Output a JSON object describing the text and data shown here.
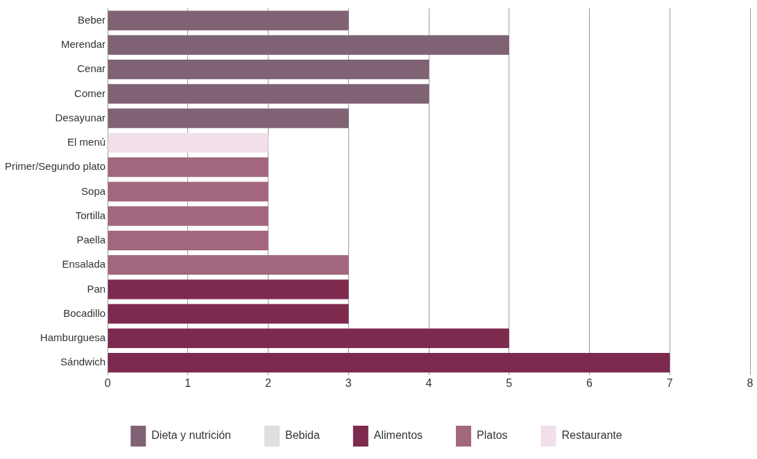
{
  "chart_data": {
    "type": "bar",
    "orientation": "horizontal",
    "stacked": true,
    "categories": [
      "Beber",
      "Merendar",
      "Cenar",
      "Comer",
      "Desayunar",
      "El menú",
      "Primer/Segundo plato",
      "Sopa",
      "Tortilla",
      "Paella",
      "Ensalada",
      "Pan",
      "Bocadillo",
      "Hamburguesa",
      "Sándwich"
    ],
    "series": [
      {
        "name": "Dieta y nutrición",
        "color": "#7f6374",
        "values": [
          3,
          5,
          4,
          4,
          3,
          null,
          null,
          null,
          null,
          null,
          null,
          null,
          null,
          null,
          null
        ]
      },
      {
        "name": "Bebida",
        "color": "#e0dfdf",
        "values": [
          null,
          null,
          null,
          null,
          null,
          null,
          null,
          null,
          null,
          null,
          null,
          null,
          null,
          null,
          null
        ]
      },
      {
        "name": "Alimentos",
        "color": "#7e2a4f",
        "values": [
          null,
          null,
          null,
          null,
          null,
          null,
          null,
          null,
          null,
          null,
          null,
          3,
          3,
          5,
          7
        ]
      },
      {
        "name": "Platos",
        "color": "#a2677f",
        "values": [
          null,
          null,
          null,
          null,
          null,
          null,
          2,
          2,
          2,
          2,
          3,
          null,
          null,
          null,
          null
        ]
      },
      {
        "name": "Restaurante",
        "color": "#f1dfeb",
        "values": [
          null,
          null,
          null,
          null,
          null,
          2,
          null,
          null,
          null,
          null,
          null,
          null,
          null,
          null,
          null
        ]
      }
    ],
    "xlim": [
      0,
      8
    ],
    "xticks": [
      0,
      1,
      2,
      3,
      4,
      5,
      6,
      7,
      8
    ],
    "grid": "x",
    "legend": "bottom"
  }
}
